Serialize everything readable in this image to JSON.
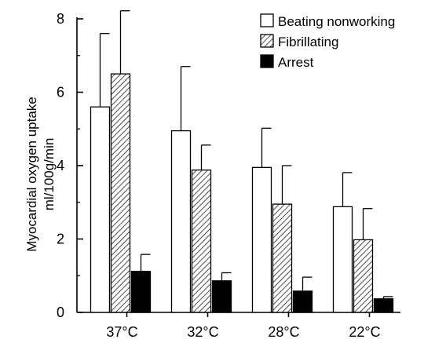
{
  "chart_data": {
    "type": "bar",
    "ylabel_line1": "Myocardial oxygen uptake",
    "ylabel_line2": "ml/100g/min",
    "xlabel": "",
    "categories": [
      "37°C",
      "32°C",
      "28°C",
      "22°C"
    ],
    "ylim": [
      0,
      8
    ],
    "yticks": [
      "0",
      "2",
      "4",
      "6",
      "8"
    ],
    "grid": false,
    "legend_position": "top-right",
    "series": [
      {
        "name": "Beating nonworking",
        "pattern": "white",
        "values": [
          5.6,
          4.95,
          3.95,
          2.88
        ],
        "errors": [
          2.0,
          1.75,
          1.07,
          0.93
        ]
      },
      {
        "name": "Fibrillating",
        "pattern": "hatched",
        "values": [
          6.5,
          3.88,
          2.95,
          1.98
        ],
        "errors": [
          1.72,
          0.68,
          1.05,
          0.85
        ]
      },
      {
        "name": "Arrest",
        "pattern": "black",
        "values": [
          1.12,
          0.86,
          0.58,
          0.37
        ],
        "errors": [
          0.46,
          0.22,
          0.38,
          0.06
        ]
      }
    ],
    "colors": {
      "bar_stroke": "#000000",
      "black_fill": "#000000",
      "white_fill": "#ffffff"
    }
  }
}
